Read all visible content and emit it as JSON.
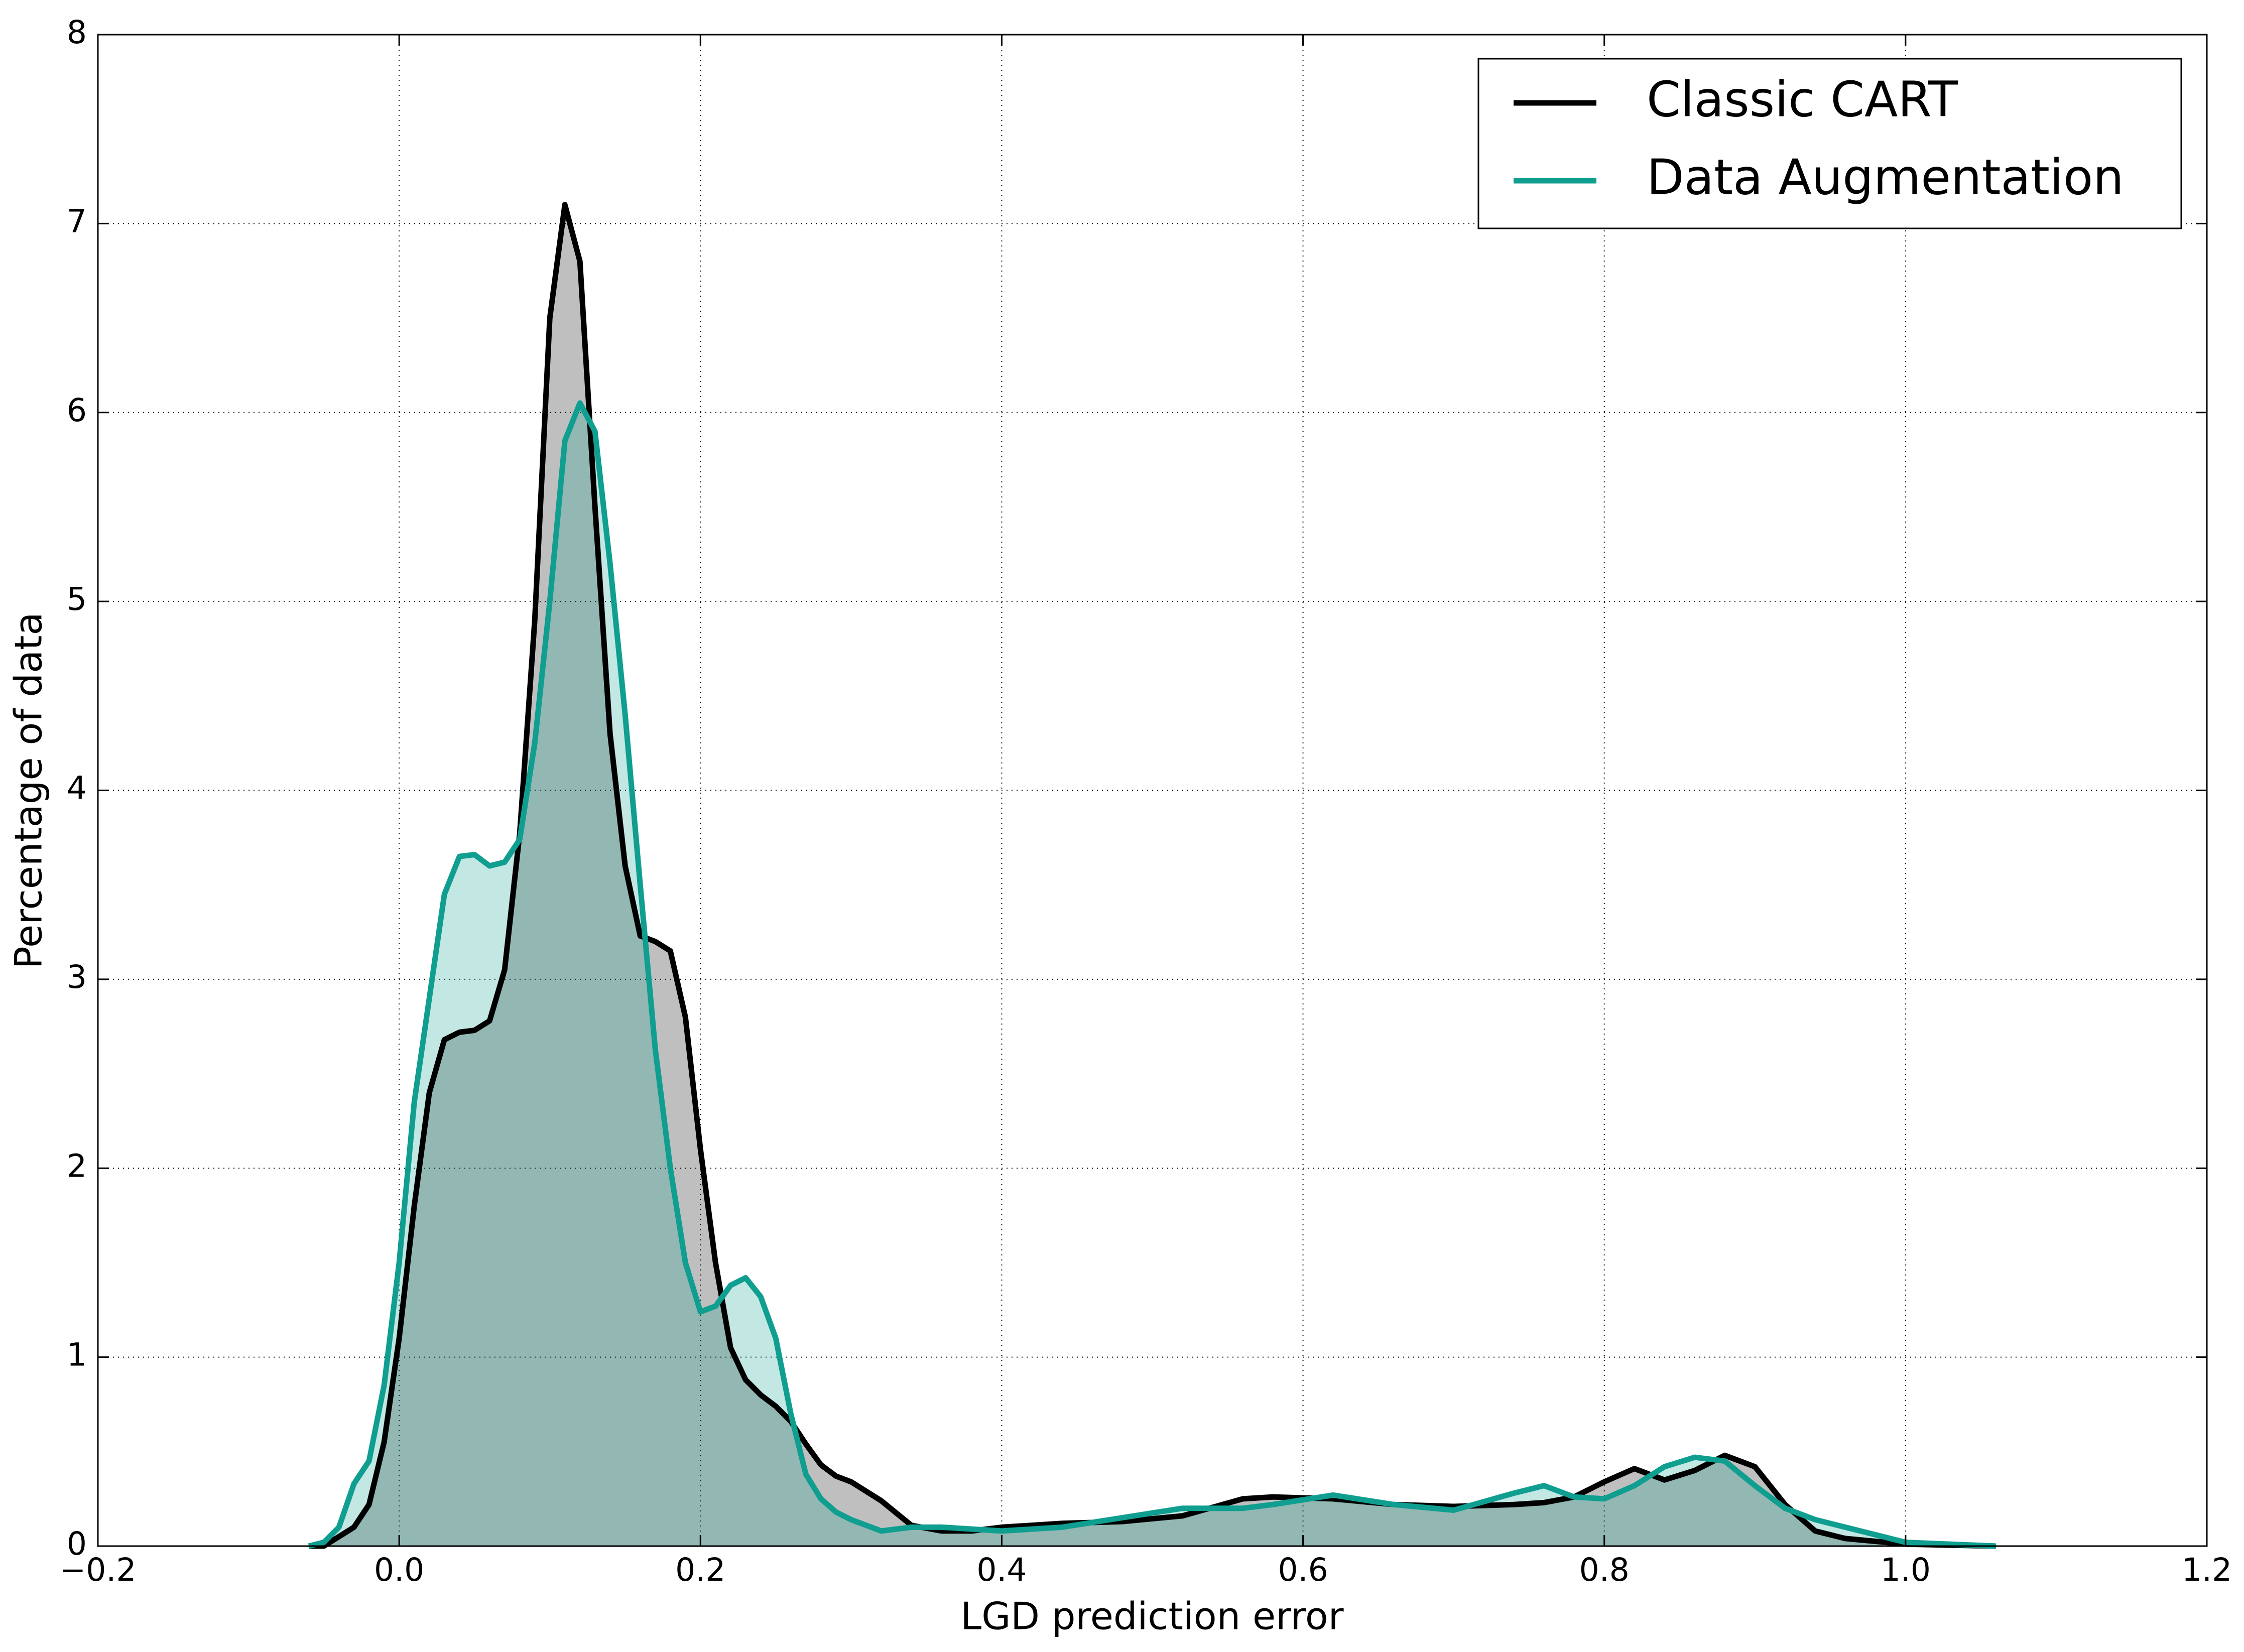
{
  "chart_data": {
    "type": "area",
    "xlabel": "LGD prediction error",
    "ylabel": "Percentage of data",
    "x": [
      -0.06,
      -0.05,
      -0.04,
      -0.03,
      -0.02,
      -0.01,
      0.0,
      0.01,
      0.02,
      0.03,
      0.04,
      0.05,
      0.06,
      0.07,
      0.08,
      0.09,
      0.1,
      0.11,
      0.12,
      0.13,
      0.14,
      0.15,
      0.16,
      0.17,
      0.18,
      0.19,
      0.2,
      0.21,
      0.22,
      0.23,
      0.24,
      0.25,
      0.26,
      0.27,
      0.28,
      0.29,
      0.3,
      0.32,
      0.34,
      0.36,
      0.38,
      0.4,
      0.44,
      0.48,
      0.52,
      0.56,
      0.58,
      0.62,
      0.66,
      0.7,
      0.74,
      0.76,
      0.78,
      0.8,
      0.82,
      0.84,
      0.86,
      0.88,
      0.9,
      0.92,
      0.94,
      0.96,
      1.0,
      1.06
    ],
    "series": [
      {
        "name": "Classic CART",
        "color": "#000000",
        "values": [
          0,
          0,
          0.05,
          0.1,
          0.22,
          0.55,
          1.1,
          1.8,
          2.4,
          2.68,
          2.72,
          2.73,
          2.78,
          3.05,
          3.77,
          4.9,
          6.5,
          7.1,
          6.8,
          5.5,
          4.3,
          3.6,
          3.23,
          3.2,
          3.15,
          2.8,
          2.1,
          1.5,
          1.05,
          0.88,
          0.8,
          0.74,
          0.66,
          0.54,
          0.43,
          0.37,
          0.34,
          0.24,
          0.11,
          0.08,
          0.08,
          0.1,
          0.12,
          0.13,
          0.16,
          0.25,
          0.26,
          0.25,
          0.22,
          0.21,
          0.22,
          0.23,
          0.26,
          0.34,
          0.41,
          0.35,
          0.4,
          0.48,
          0.42,
          0.22,
          0.08,
          0.04,
          0.01,
          0
        ]
      },
      {
        "name": "Data Augmentation",
        "color": "#0f9e8f",
        "values": [
          0,
          0.02,
          0.1,
          0.33,
          0.45,
          0.85,
          1.5,
          2.35,
          2.9,
          3.45,
          3.65,
          3.66,
          3.6,
          3.62,
          3.74,
          4.25,
          5.0,
          5.85,
          6.05,
          5.9,
          5.2,
          4.4,
          3.5,
          2.63,
          2.0,
          1.5,
          1.24,
          1.27,
          1.38,
          1.42,
          1.32,
          1.1,
          0.7,
          0.38,
          0.25,
          0.18,
          0.14,
          0.08,
          0.1,
          0.1,
          0.09,
          0.08,
          0.1,
          0.15,
          0.2,
          0.2,
          0.22,
          0.27,
          0.22,
          0.19,
          0.28,
          0.32,
          0.26,
          0.25,
          0.32,
          0.42,
          0.47,
          0.45,
          0.32,
          0.2,
          0.14,
          0.1,
          0.02,
          0
        ]
      }
    ],
    "xlim": [
      -0.2,
      1.2
    ],
    "xticks": [
      {
        "value": -0.2,
        "label": "−0.2"
      },
      {
        "value": 0.0,
        "label": "0.0"
      },
      {
        "value": 0.2,
        "label": "0.2"
      },
      {
        "value": 0.4,
        "label": "0.4"
      },
      {
        "value": 0.6,
        "label": "0.6"
      },
      {
        "value": 0.8,
        "label": "0.8"
      },
      {
        "value": 1.0,
        "label": "1.0"
      },
      {
        "value": 1.2,
        "label": "1.2"
      }
    ],
    "ylim": [
      0,
      8
    ],
    "yticks": [
      0,
      1,
      2,
      3,
      4,
      5,
      6,
      7,
      8
    ],
    "grid": true,
    "legend": "upper right"
  }
}
